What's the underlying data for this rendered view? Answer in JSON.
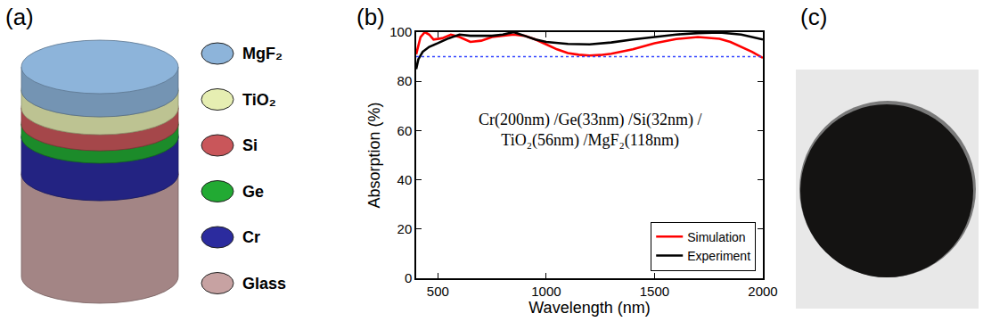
{
  "panel_labels": [
    "(a)",
    "(b)",
    "(c)"
  ],
  "stack": {
    "layers": [
      {
        "label": "MgF₂",
        "color": "#8db4da"
      },
      {
        "label": "TiO₂",
        "color": "#e6eeb2"
      },
      {
        "label": "Si",
        "color": "#c9565a"
      },
      {
        "label": "Ge",
        "color": "#22aa33"
      },
      {
        "label": "Cr",
        "color": "#2b2b9e"
      },
      {
        "label": "Glass",
        "color": "#c7a2a2"
      }
    ]
  },
  "photo": {
    "disc_color": "#141312",
    "background_color": "#e8e8e8"
  },
  "chart_data": {
    "type": "line",
    "x_label": "Wavelength (nm)",
    "y_label": "Absorption (%)",
    "annotations": [
      "Cr(200nm) /Ge(33nm) /Si(32nm) /",
      "TiO₂(56nm) /MgF₂(118nm)"
    ],
    "xlim": [
      400,
      2000
    ],
    "xticks": [
      500,
      1000,
      1500,
      2000
    ],
    "ylim": [
      0,
      100
    ],
    "yticks": [
      0,
      20,
      40,
      60,
      80,
      100
    ],
    "grid": false,
    "legend": "lower right",
    "series": [
      {
        "name": "Simulation",
        "color": "#ff0000",
        "line_style": "solid",
        "x": [
          400,
          420,
          440,
          460,
          480,
          520,
          560,
          600,
          650,
          700,
          750,
          800,
          850,
          900,
          950,
          1000,
          1050,
          1100,
          1150,
          1200,
          1250,
          1300,
          1400,
          1500,
          1600,
          1700,
          1800,
          1850,
          1900,
          1950,
          2000
        ],
        "values": [
          91,
          98,
          100,
          99,
          97,
          97.5,
          99,
          98,
          96,
          96.5,
          98,
          98.5,
          99,
          98.5,
          97,
          95,
          93,
          91.5,
          90.8,
          90.5,
          90.7,
          91.2,
          93,
          95.5,
          97.2,
          98,
          97.3,
          96,
          94,
          92,
          89.5
        ]
      },
      {
        "name": "Experiment",
        "color": "#000000",
        "line_style": "solid",
        "x": [
          400,
          410,
          430,
          460,
          500,
          550,
          600,
          650,
          700,
          750,
          800,
          850,
          900,
          950,
          1000,
          1100,
          1200,
          1300,
          1400,
          1500,
          1600,
          1700,
          1800,
          1900,
          1950,
          2000
        ],
        "values": [
          85,
          89,
          92,
          94,
          95.5,
          97.5,
          99,
          98.5,
          98.5,
          98.5,
          99,
          100,
          98.5,
          97,
          96,
          95.2,
          95,
          95.8,
          97,
          98,
          99,
          99.6,
          99.8,
          99,
          98,
          97
        ]
      },
      {
        "color": "#3344ff",
        "line_style": "dotted",
        "x": [
          400,
          2000
        ],
        "values": [
          90,
          90
        ]
      }
    ]
  }
}
